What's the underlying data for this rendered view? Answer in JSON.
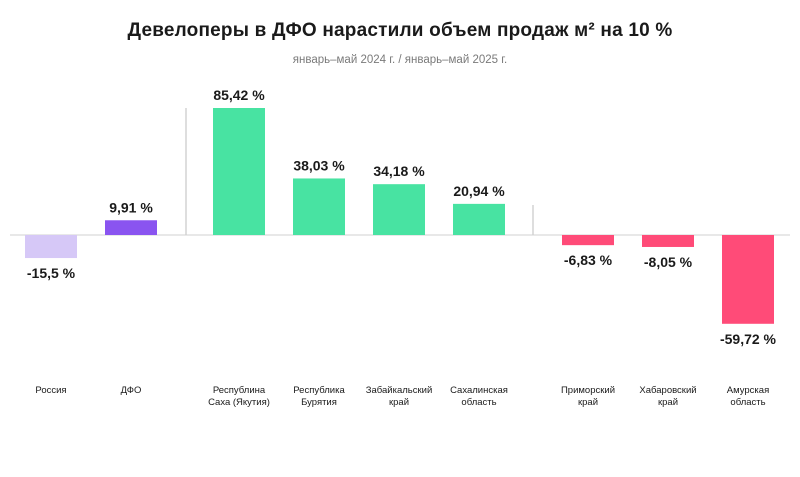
{
  "chart_data": {
    "type": "bar",
    "title": "Девелоперы в ДФО нарастили объем продаж м² на 10 %",
    "subtitle": "январь–май 2024 г. / январь–май 2025 г.",
    "categories": [
      [
        "Россия"
      ],
      [
        "ДФО"
      ],
      [
        "Республина",
        "Саха (Якутия)"
      ],
      [
        "Республика",
        "Бурятия"
      ],
      [
        "Забайкальский",
        "край"
      ],
      [
        "Сахалинская",
        "область"
      ],
      [
        "Приморский",
        "край"
      ],
      [
        "Хабаровский",
        "край"
      ],
      [
        "Амурская",
        "область"
      ]
    ],
    "values": [
      -15.5,
      9.91,
      85.42,
      38.03,
      34.18,
      20.94,
      -6.83,
      -8.05,
      -59.72
    ],
    "value_labels": [
      "-15,5 %",
      "9,91 %",
      "85,42 %",
      "38,03 %",
      "34,18 %",
      "20,94 %",
      "-6,83 %",
      "-8,05 %",
      "-59,72 %"
    ],
    "colors": [
      "#d6c8f7",
      "#8a54f0",
      "#48e3a2",
      "#48e3a2",
      "#48e3a2",
      "#48e3a2",
      "#ff4b78",
      "#ff4b78",
      "#ff4b78"
    ],
    "ylim": [
      -59.72,
      85.42
    ],
    "groups": [
      [
        0,
        1
      ],
      [
        2,
        3,
        4,
        5
      ],
      [
        6,
        7,
        8
      ]
    ]
  }
}
